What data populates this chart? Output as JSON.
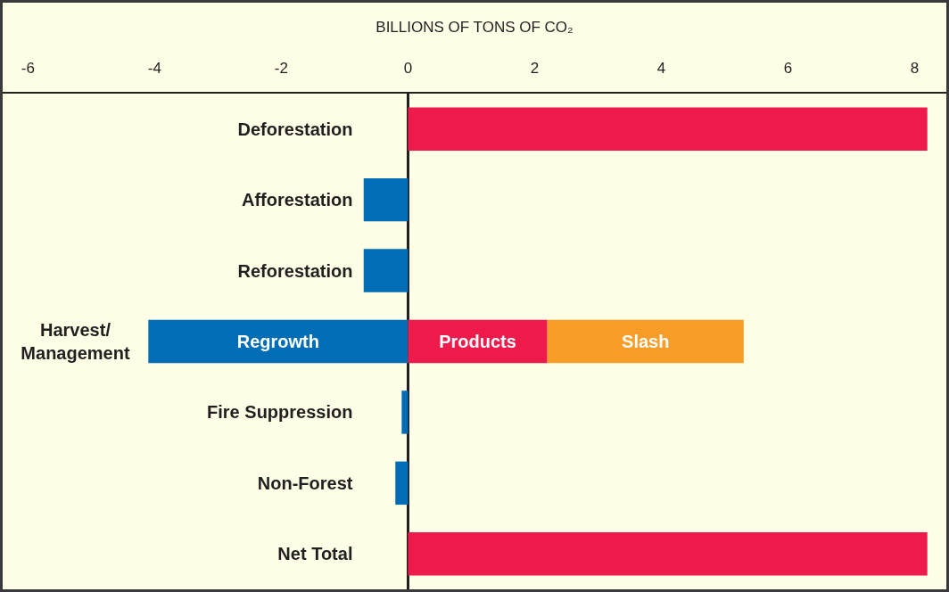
{
  "chart_data": {
    "type": "bar",
    "orientation": "horizontal",
    "stacked": true,
    "xlabel": "BILLIONS OF TONS OF CO₂",
    "categories": [
      "Deforestation",
      "Afforestation",
      "Reforestation",
      "Harvest/\nManagement",
      "Fire Suppression",
      "Non-Forest",
      "Net Total"
    ],
    "series": [
      {
        "color": "#006db6",
        "values": [
          null,
          -0.7,
          -0.7,
          -4.1,
          -0.1,
          -0.2,
          null
        ],
        "value_labels": [
          null,
          null,
          null,
          "Regrowth",
          null,
          null,
          null
        ]
      },
      {
        "color": "#ed1a4b",
        "values": [
          8.2,
          null,
          null,
          2.2,
          null,
          null,
          8.2
        ],
        "value_labels": [
          null,
          null,
          null,
          "Products",
          null,
          null,
          null
        ]
      },
      {
        "color": "#f89c28",
        "values": [
          null,
          null,
          null,
          3.1,
          null,
          null,
          null
        ],
        "value_labels": [
          null,
          null,
          null,
          "Slash",
          null,
          null,
          null
        ]
      }
    ],
    "xlim": [
      -6.4,
      8.5
    ],
    "xticks": [
      -6,
      -4,
      -2,
      0,
      2,
      4,
      6,
      8
    ]
  }
}
